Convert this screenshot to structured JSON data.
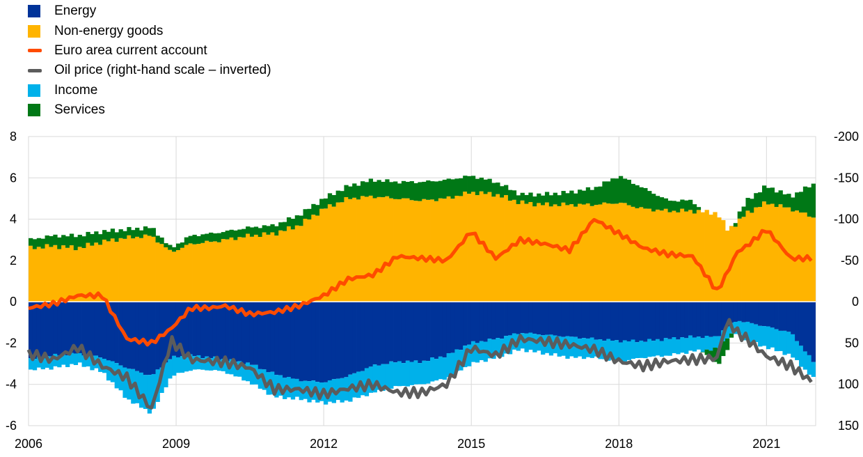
{
  "chart_data": {
    "type": "bar",
    "title": "",
    "xlabel": "",
    "ylabel": "",
    "ylim": [
      -6,
      8
    ],
    "y2lim": [
      150,
      -200
    ],
    "y2_inverted": true,
    "grid": true,
    "legend_position": "top-left",
    "x_ticks": [
      "2006",
      "2009",
      "2012",
      "2015",
      "2018",
      "2021"
    ],
    "y_ticks": [
      "8",
      "6",
      "4",
      "2",
      "0",
      "-2",
      "-4",
      "-6"
    ],
    "y2_ticks": [
      "-200",
      "-150",
      "-100",
      "-50",
      "0",
      "50",
      "100",
      "150"
    ],
    "legend": [
      {
        "name": "Energy",
        "kind": "bar",
        "color": "#003399"
      },
      {
        "name": "Non-energy goods",
        "kind": "bar",
        "color": "#FFB400"
      },
      {
        "name": "Euro area current account",
        "kind": "line",
        "color": "#FF4B00"
      },
      {
        "name": "Oil price (right-hand scale – inverted)",
        "kind": "line",
        "color": "#5C5C5C"
      },
      {
        "name": "Income",
        "kind": "bar",
        "color": "#00B1EA"
      },
      {
        "name": "Services",
        "kind": "bar",
        "color": "#007816"
      }
    ],
    "x_start": 2006.0,
    "x_end": 2022.0,
    "anchors": {
      "x": [
        2006.0,
        2006.5,
        2007.0,
        2007.5,
        2008.0,
        2008.5,
        2008.9,
        2009.3,
        2009.7,
        2010.0,
        2010.5,
        2011.0,
        2011.5,
        2012.0,
        2012.5,
        2013.0,
        2013.5,
        2014.0,
        2014.5,
        2015.0,
        2015.5,
        2016.0,
        2016.5,
        2017.0,
        2017.5,
        2018.0,
        2018.5,
        2019.0,
        2019.5,
        2020.0,
        2020.2,
        2020.4,
        2020.6,
        2021.0,
        2021.5,
        2021.95
      ],
      "energy": [
        -2.8,
        -2.6,
        -2.5,
        -2.7,
        -3.2,
        -3.6,
        -2.7,
        -2.6,
        -2.7,
        -2.8,
        -3.0,
        -3.5,
        -3.8,
        -3.9,
        -3.6,
        -3.1,
        -2.9,
        -2.9,
        -2.6,
        -2.0,
        -1.8,
        -1.5,
        -1.6,
        -1.7,
        -1.8,
        -1.9,
        -1.9,
        -1.8,
        -1.7,
        -1.7,
        -1.2,
        -0.9,
        -1.0,
        -1.2,
        -1.5,
        -2.9
      ],
      "nonenergy": [
        2.6,
        2.7,
        2.6,
        2.9,
        3.1,
        3.2,
        2.4,
        2.8,
        2.9,
        3.0,
        3.2,
        3.3,
        3.7,
        4.5,
        5.0,
        5.1,
        5.0,
        4.9,
        5.0,
        5.3,
        5.2,
        4.8,
        4.7,
        4.7,
        4.7,
        4.8,
        4.5,
        4.4,
        4.4,
        4.3,
        3.5,
        3.8,
        4.3,
        4.8,
        4.5,
        4.1
      ],
      "income": [
        -0.5,
        -0.6,
        -0.5,
        -0.7,
        -1.5,
        -1.8,
        -0.9,
        -0.7,
        -0.6,
        -0.6,
        -0.9,
        -1.1,
        -0.9,
        -1.0,
        -1.2,
        -1.3,
        -1.2,
        -1.1,
        -1.1,
        -1.0,
        -0.9,
        -0.8,
        -0.9,
        -1.0,
        -0.9,
        -1.0,
        -0.8,
        -0.8,
        -0.7,
        -0.6,
        -0.5,
        -0.6,
        -0.9,
        -1.0,
        -1.1,
        -0.8
      ],
      "services": [
        0.4,
        0.5,
        0.6,
        0.5,
        0.4,
        0.4,
        0.2,
        0.4,
        0.4,
        0.4,
        0.4,
        0.4,
        0.5,
        0.5,
        0.6,
        0.8,
        0.8,
        0.9,
        0.9,
        0.8,
        0.6,
        0.4,
        0.5,
        0.6,
        0.8,
        1.3,
        1.0,
        0.5,
        0.5,
        -0.8,
        -0.6,
        0.3,
        0.6,
        0.8,
        0.6,
        1.6
      ],
      "current_account": [
        -0.3,
        -0.1,
        0.3,
        0.3,
        -1.8,
        -2.0,
        -1.3,
        -0.3,
        -0.3,
        -0.2,
        -0.6,
        -0.5,
        -0.2,
        0.3,
        1.1,
        1.3,
        2.2,
        2.1,
        2.0,
        3.4,
        2.1,
        3.0,
        2.8,
        2.5,
        4.0,
        3.3,
        2.6,
        2.3,
        2.2,
        0.5,
        1.4,
        2.4,
        2.7,
        3.5,
        2.1,
        2.1
      ],
      "oil": [
        63,
        70,
        55,
        78,
        92,
        130,
        47,
        70,
        72,
        73,
        80,
        106,
        106,
        112,
        105,
        100,
        110,
        110,
        100,
        56,
        65,
        45,
        48,
        52,
        58,
        72,
        78,
        72,
        70,
        68,
        22,
        37,
        45,
        66,
        78,
        98
      ]
    },
    "bar_step": 0.0833
  }
}
